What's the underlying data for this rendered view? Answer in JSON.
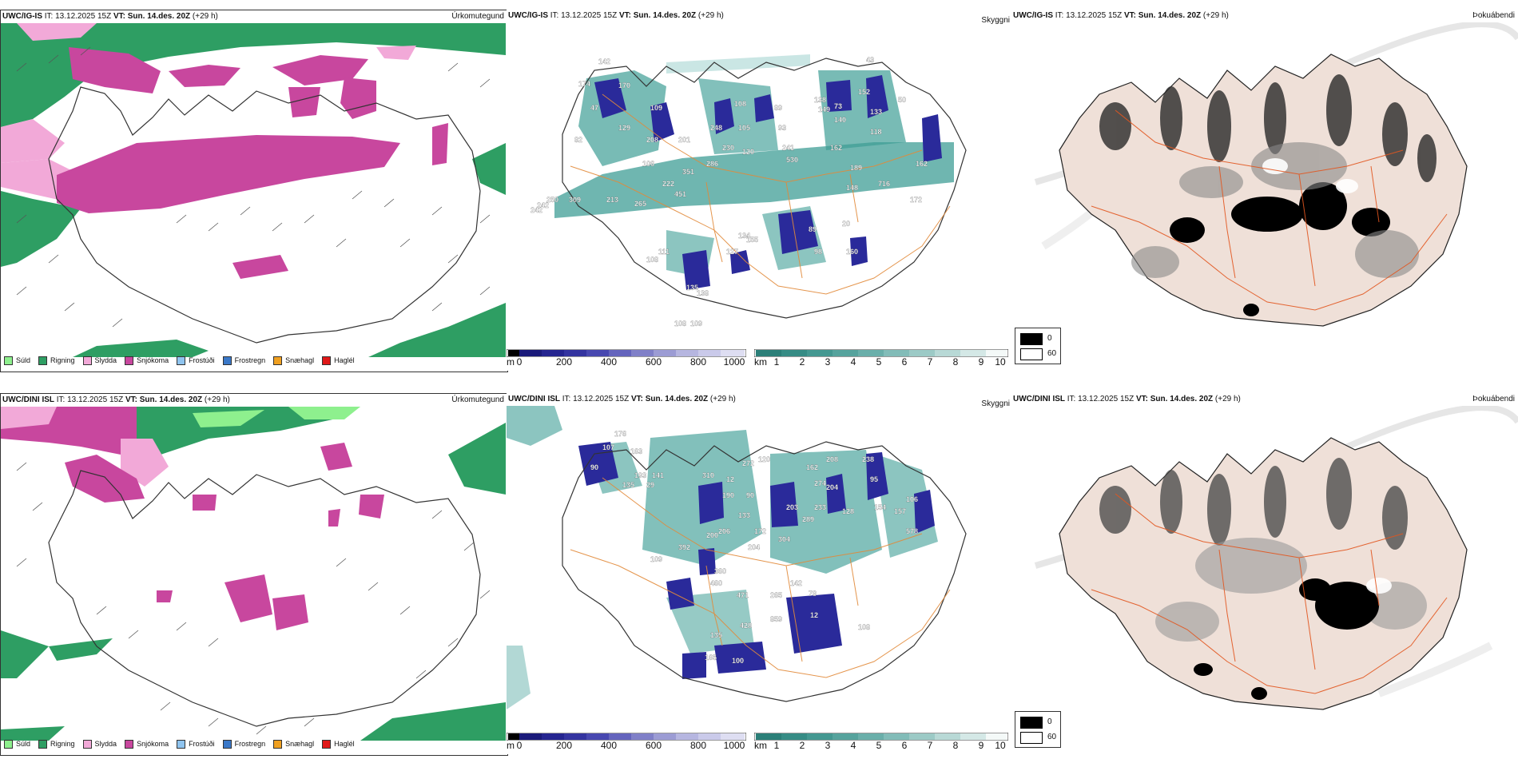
{
  "rows": [
    {
      "model": "UWC/IG-IS",
      "it_label": "IT:",
      "it_value": "13.12.2025 15Z",
      "vt_label": "VT:",
      "vt_value": "Sun. 14.des. 20Z",
      "lead": "(+29 h)",
      "panel1_tag": "Úrkomutegund",
      "panel2_tag": "Skyggni",
      "panel3_tag": "Þokuábendi"
    },
    {
      "model": "UWC/DINI ISL",
      "it_label": "IT:",
      "it_value": "13.12.2025 15Z",
      "vt_label": "VT:",
      "vt_value": "Sun. 14.des. 20Z",
      "lead": "(+29 h)",
      "panel1_tag": "Úrkomutegund",
      "panel2_tag": "Skyggni",
      "panel3_tag": "Þokuábendi"
    }
  ],
  "precip_legend": [
    {
      "label": "Súld",
      "color": "#8ef08e"
    },
    {
      "label": "Rigning",
      "color": "#2e9e63"
    },
    {
      "label": "Slydda",
      "color": "#f2a9d8"
    },
    {
      "label": "Snjókoma",
      "color": "#c8479e"
    },
    {
      "label": "Frostúði",
      "color": "#8fc4ef"
    },
    {
      "label": "Frostregn",
      "color": "#3a78c8"
    },
    {
      "label": "Snæhagl",
      "color": "#f0a020"
    },
    {
      "label": "Haglél",
      "color": "#e01818"
    }
  ],
  "vis_bar_m": {
    "unit": "m",
    "ticks": [
      "0",
      "200",
      "400",
      "600",
      "800",
      "1000"
    ]
  },
  "vis_bar_km": {
    "unit": "km",
    "ticks": [
      "1",
      "2",
      "3",
      "4",
      "5",
      "6",
      "7",
      "8",
      "9",
      "10"
    ]
  },
  "fog_legend": {
    "black": "0",
    "white": "60"
  },
  "labels_top": [
    "142",
    "174",
    "170",
    "109",
    "129",
    "47",
    "208",
    "201",
    "242",
    "248",
    "105",
    "108",
    "89",
    "93",
    "138",
    "149",
    "73",
    "43",
    "50",
    "152",
    "133",
    "118",
    "140",
    "162",
    "189",
    "716",
    "530",
    "241",
    "120",
    "230",
    "286",
    "351",
    "222",
    "451",
    "213",
    "265",
    "250",
    "309",
    "242",
    "82",
    "106",
    "108",
    "111",
    "127",
    "155",
    "89",
    "98",
    "135",
    "138",
    "109",
    "108",
    "134",
    "160",
    "20",
    "148",
    "172",
    "162"
  ],
  "labels_bottom": [
    "176",
    "107",
    "163",
    "90",
    "193",
    "141",
    "135",
    "29",
    "310",
    "12",
    "272",
    "190",
    "90",
    "120",
    "162",
    "208",
    "274",
    "204",
    "238",
    "95",
    "154",
    "106",
    "157",
    "578",
    "133",
    "172",
    "203",
    "304",
    "289",
    "233",
    "128",
    "200",
    "206",
    "204",
    "392",
    "109",
    "360",
    "460",
    "471",
    "265",
    "142",
    "78",
    "12",
    "859",
    "428",
    "135",
    "165",
    "100",
    "108"
  ]
}
